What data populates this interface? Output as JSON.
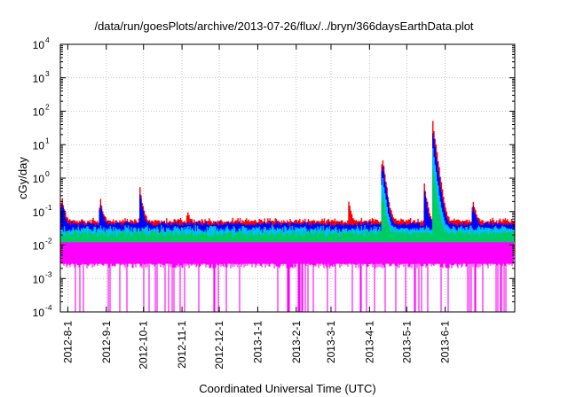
{
  "chart_data": {
    "type": "line",
    "title": "/data/run/goesPlots/archive/2013-07-26/flux/../bryn/366daysEarthData.plot",
    "xlabel": "Coordinated Universal Time (UTC)",
    "ylabel": "cGy/day",
    "yscale": "log",
    "ylim": [
      0.0001,
      10000
    ],
    "xlim": [
      "2012-07-26",
      "2013-07-27"
    ],
    "grid": true,
    "y_ticks": [
      {
        "value": 0.0001,
        "base": "10",
        "exp": "-4"
      },
      {
        "value": 0.001,
        "base": "10",
        "exp": "-3"
      },
      {
        "value": 0.01,
        "base": "10",
        "exp": "-2"
      },
      {
        "value": 0.1,
        "base": "10",
        "exp": "-1"
      },
      {
        "value": 1,
        "base": "10",
        "exp": "0"
      },
      {
        "value": 10,
        "base": "10",
        "exp": "1"
      },
      {
        "value": 100,
        "base": "10",
        "exp": "2"
      },
      {
        "value": 1000,
        "base": "10",
        "exp": "3"
      },
      {
        "value": 10000,
        "base": "10",
        "exp": "4"
      }
    ],
    "x_ticks": [
      {
        "date": "2012-08-01",
        "label": "2012-8-1"
      },
      {
        "date": "2012-09-01",
        "label": "2012-9-1"
      },
      {
        "date": "2012-10-01",
        "label": "2012-10-1"
      },
      {
        "date": "2012-11-01",
        "label": "2012-11-1"
      },
      {
        "date": "2012-12-01",
        "label": "2012-12-1"
      },
      {
        "date": "2013-01-01",
        "label": "2013-1-1"
      },
      {
        "date": "2013-02-01",
        "label": "2013-2-1"
      },
      {
        "date": "2013-03-01",
        "label": "2013-3-1"
      },
      {
        "date": "2013-04-01",
        "label": "2013-4-1"
      },
      {
        "date": "2013-05-01",
        "label": "2013-5-1"
      },
      {
        "date": "2013-06-01",
        "label": "2013-6-1"
      }
    ],
    "series": [
      {
        "color": "#ff0000",
        "baseline": 0.05,
        "peaks": [
          {
            "date": "2012-07-27",
            "value": 0.35
          },
          {
            "date": "2012-08-27",
            "value": 0.28
          },
          {
            "date": "2012-09-28",
            "value": 0.55
          },
          {
            "date": "2012-11-05",
            "value": 0.12
          },
          {
            "date": "2013-03-15",
            "value": 0.25
          },
          {
            "date": "2013-04-11",
            "value": 6
          },
          {
            "date": "2013-05-15",
            "value": 0.8
          },
          {
            "date": "2013-05-22",
            "value": 50
          },
          {
            "date": "2013-06-23",
            "value": 0.3
          }
        ]
      },
      {
        "color": "#0000ff",
        "baseline": 0.04,
        "peaks": [
          {
            "date": "2012-07-27",
            "value": 0.25
          },
          {
            "date": "2012-08-27",
            "value": 0.2
          },
          {
            "date": "2012-09-28",
            "value": 0.4
          },
          {
            "date": "2013-04-11",
            "value": 4
          },
          {
            "date": "2013-05-15",
            "value": 0.5
          },
          {
            "date": "2013-05-22",
            "value": 25
          },
          {
            "date": "2013-06-23",
            "value": 0.2
          }
        ]
      },
      {
        "color": "#00bfff",
        "baseline": 0.03,
        "peaks": [
          {
            "date": "2013-04-11",
            "value": 1.5
          },
          {
            "date": "2013-05-22",
            "value": 8
          }
        ]
      },
      {
        "color": "#00cc66",
        "baseline": 0.022,
        "peaks": [
          {
            "date": "2013-04-11",
            "value": 0.5
          },
          {
            "date": "2013-05-22",
            "value": 2
          }
        ]
      },
      {
        "color": "#ff00ff",
        "baseline": 0.02,
        "floor": 0.0025,
        "dropout_floor": 0.0001
      }
    ]
  }
}
